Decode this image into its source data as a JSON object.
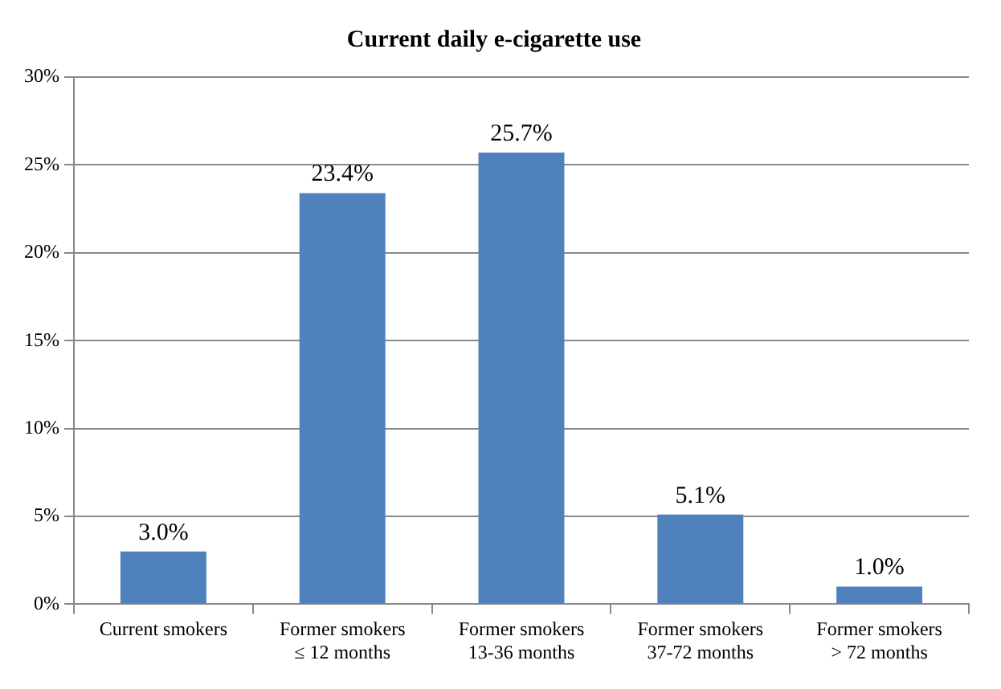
{
  "chart_data": {
    "type": "bar",
    "title": "Current daily e-cigarette use",
    "categories": [
      "Current smokers",
      "Former smokers\n≤ 12 months",
      "Former smokers\n13-36 months",
      "Former smokers\n37-72 months",
      "Former smokers\n> 72 months"
    ],
    "values": [
      3.0,
      23.4,
      25.7,
      5.1,
      1.0
    ],
    "value_labels": [
      "3.0%",
      "23.4%",
      "25.7%",
      "5.1%",
      "1.0%"
    ],
    "color": "#4f81bd",
    "ylim": [
      0,
      30
    ],
    "yticks": [
      {
        "value": 0,
        "label": "0%"
      },
      {
        "value": 5,
        "label": "5%"
      },
      {
        "value": 10,
        "label": "10%"
      },
      {
        "value": 15,
        "label": "15%"
      },
      {
        "value": 20,
        "label": "20%"
      },
      {
        "value": 25,
        "label": "25%"
      },
      {
        "value": 30,
        "label": "30%"
      }
    ],
    "grid": "y",
    "legend": false
  }
}
